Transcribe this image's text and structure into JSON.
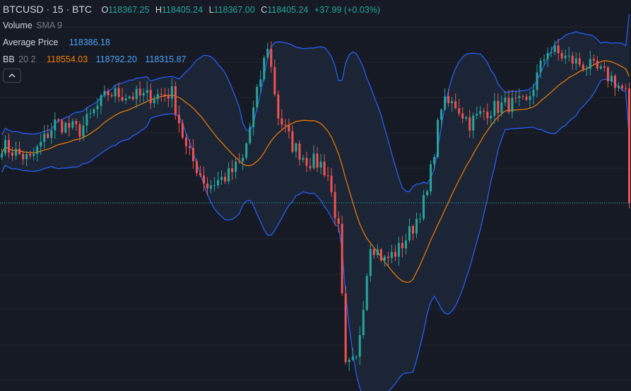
{
  "legend": {
    "symbol": "BTCUSD · 15 · BTC",
    "ohlc": [
      {
        "k": "O",
        "v": "118367.25"
      },
      {
        "k": "H",
        "v": "118405.24"
      },
      {
        "k": "L",
        "v": "118367.00"
      },
      {
        "k": "C",
        "v": "118405.24"
      }
    ],
    "change": "+37.99 (+0.03%)",
    "volume": {
      "label": "Volume",
      "param": "SMA 9"
    },
    "avg": {
      "label": "Average Price",
      "value": "118386.18"
    },
    "bb": {
      "label": "BB",
      "param": "20 2",
      "basis": "118554.03",
      "upper": "118792.20",
      "lower": "118315.87"
    }
  },
  "colors": {
    "background": "#161a25",
    "up": "#26a69a",
    "down": "#ef5350",
    "bb_band": "#2962ff",
    "bb_basis": "#f57c00",
    "bb_fill": "#1c2536",
    "grid": "#20242f"
  },
  "chart_data": {
    "type": "candlestick",
    "indicators": [
      "Bollinger Bands (20, 2)",
      "Volume SMA 9",
      "Average Price"
    ],
    "last_price": 118405.24,
    "price_min": 117900,
    "price_max": 118950,
    "grid": true,
    "anchors": [
      {
        "i": 0,
        "p": 118560
      },
      {
        "i": 8,
        "p": 118520
      },
      {
        "i": 15,
        "p": 118620
      },
      {
        "i": 22,
        "p": 118600
      },
      {
        "i": 30,
        "p": 118700
      },
      {
        "i": 40,
        "p": 118690
      },
      {
        "i": 48,
        "p": 118700
      },
      {
        "i": 52,
        "p": 118550
      },
      {
        "i": 58,
        "p": 118450
      },
      {
        "i": 64,
        "p": 118480
      },
      {
        "i": 68,
        "p": 118520
      },
      {
        "i": 75,
        "p": 118830
      },
      {
        "i": 78,
        "p": 118640
      },
      {
        "i": 82,
        "p": 118560
      },
      {
        "i": 86,
        "p": 118520
      },
      {
        "i": 90,
        "p": 118510
      },
      {
        "i": 92,
        "p": 118480
      },
      {
        "i": 95,
        "p": 118330
      },
      {
        "i": 97,
        "p": 117960
      },
      {
        "i": 100,
        "p": 117980
      },
      {
        "i": 104,
        "p": 118300
      },
      {
        "i": 108,
        "p": 118250
      },
      {
        "i": 112,
        "p": 118280
      },
      {
        "i": 116,
        "p": 118340
      },
      {
        "i": 120,
        "p": 118430
      },
      {
        "i": 124,
        "p": 118670
      },
      {
        "i": 128,
        "p": 118670
      },
      {
        "i": 132,
        "p": 118620
      },
      {
        "i": 136,
        "p": 118650
      },
      {
        "i": 142,
        "p": 118670
      },
      {
        "i": 148,
        "p": 118670
      },
      {
        "i": 154,
        "p": 118820
      },
      {
        "i": 160,
        "p": 118790
      },
      {
        "i": 166,
        "p": 118770
      },
      {
        "i": 172,
        "p": 118740
      },
      {
        "i": 176,
        "p": 118700
      }
    ]
  }
}
